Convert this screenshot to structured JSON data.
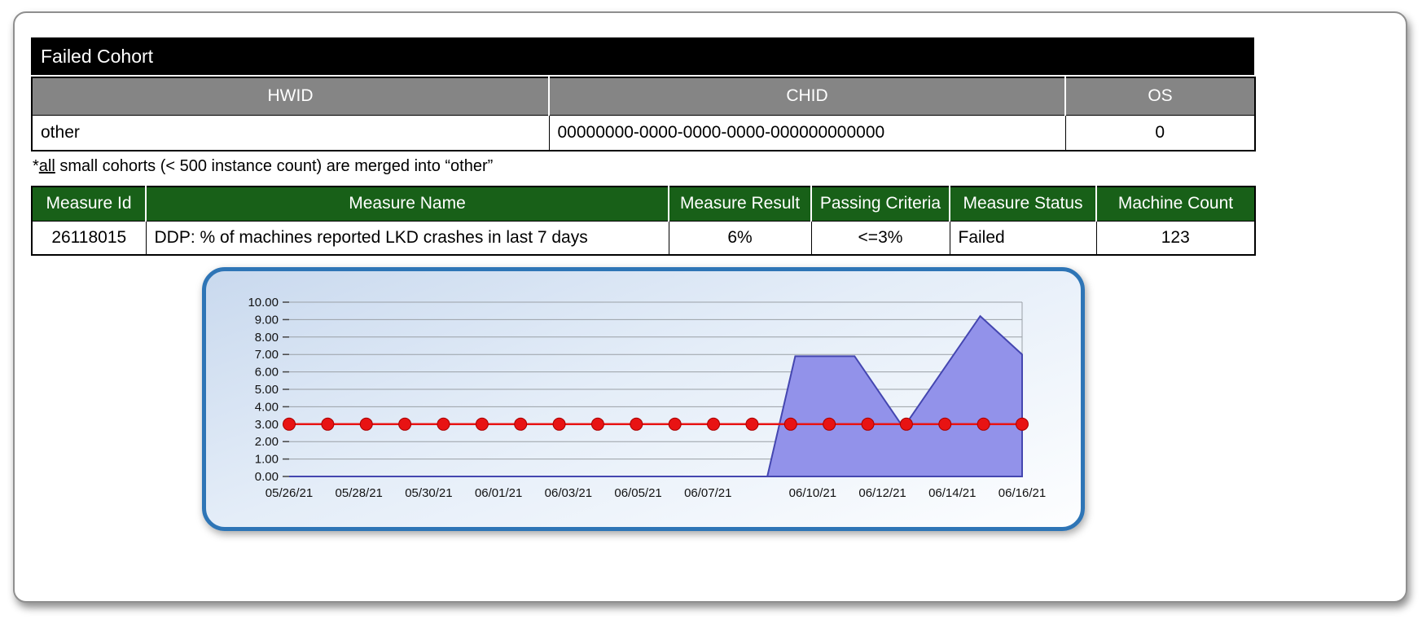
{
  "failed_cohort": {
    "title": "Failed Cohort",
    "columns": [
      "HWID",
      "CHID",
      "OS"
    ],
    "row": [
      "other",
      "00000000-0000-0000-0000-000000000000",
      "0"
    ],
    "footnote": {
      "prefix": "*",
      "underlined": "all",
      "rest": " small cohorts (< 500 instance count) are merged into “other”"
    }
  },
  "measures": {
    "columns": [
      "Measure Id",
      "Measure Name",
      "Measure Result",
      "Passing Criteria",
      "Measure Status",
      "Machine Count"
    ],
    "row": [
      "26118015",
      "DDP: % of machines reported LKD crashes in last 7 days",
      "6%",
      "<=3%",
      "Failed",
      "123"
    ]
  },
  "colors": {
    "title_bar_bg": "#000000",
    "cohort_header_bg": "#858585",
    "measures_header_bg": "#186018",
    "chart_border_blue": "#2e75b6",
    "area_fill": "#9292ea",
    "area_stroke": "#4446b0",
    "threshold_red": "#e81313"
  },
  "chart_data": {
    "type": "area",
    "title": "",
    "xlabel": "",
    "ylabel": "",
    "grid": true,
    "legend": "none",
    "x_range": [
      0,
      21
    ],
    "ylim": [
      0,
      10
    ],
    "y_tick_step": 1,
    "x_ticks": [
      {
        "label": "05/26/21",
        "day": 0
      },
      {
        "label": "05/28/21",
        "day": 2
      },
      {
        "label": "05/30/21",
        "day": 4
      },
      {
        "label": "06/01/21",
        "day": 6
      },
      {
        "label": "06/03/21",
        "day": 8
      },
      {
        "label": "06/05/21",
        "day": 10
      },
      {
        "label": "06/07/21",
        "day": 12
      },
      {
        "label": "06/10/21",
        "day": 15
      },
      {
        "label": "06/12/21",
        "day": 17
      },
      {
        "label": "06/14/21",
        "day": 19
      },
      {
        "label": "06/16/21",
        "day": 21
      }
    ],
    "series": [
      {
        "name": "measure-result-trend",
        "type": "area",
        "fill": "#9292ea",
        "stroke": "#4446b0",
        "points": [
          [
            0,
            0
          ],
          [
            13.7,
            0
          ],
          [
            14.5,
            6.9
          ],
          [
            16.2,
            6.9
          ],
          [
            17.6,
            2.8
          ],
          [
            19.8,
            9.2
          ],
          [
            21,
            7.0
          ]
        ]
      },
      {
        "name": "passing-criteria-threshold",
        "type": "line",
        "color": "#e81313",
        "value": 3.0,
        "marker_count": 20
      }
    ]
  }
}
